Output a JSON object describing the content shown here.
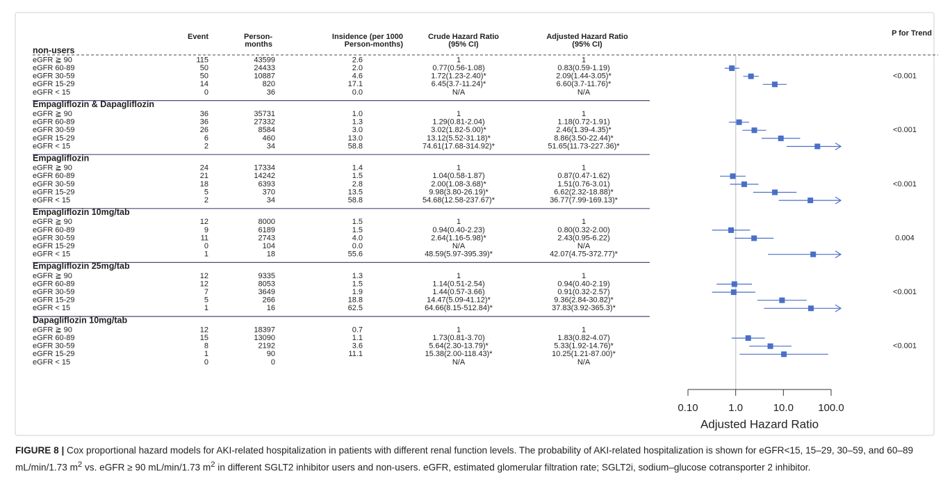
{
  "table": {
    "headers": [
      [
        "Event"
      ],
      [
        "Person-",
        "months"
      ],
      [
        "Insidence (per 1000",
        "Person-months)"
      ],
      [
        "Crude Hazard Ratio",
        "(95% CI)"
      ],
      [
        "Adjusted Hazard Ratio",
        "(95% CI)"
      ],
      [
        "P for Trend"
      ]
    ],
    "groups": [
      {
        "name": "non-users",
        "p_trend": "<0.001",
        "rows": [
          [
            "eGFR ≧ 90",
            115,
            43599,
            "2.6",
            1,
            1
          ],
          [
            "eGFR 60-89",
            50,
            24433,
            "2.0",
            "0.77(0.56-1.08)",
            "0.83(0.59-1.19)"
          ],
          [
            "eGFR 30-59",
            50,
            10887,
            "4.6",
            "1.72(1.23-2.40)*",
            "2.09(1.44-3.05)*"
          ],
          [
            "eGFR 15-29",
            14,
            820,
            "17.1",
            "6.45(3.7-11.24)*",
            "6.60(3.7-11.76)*"
          ],
          [
            "eGFR < 15",
            0,
            36,
            "0.0",
            "N/A",
            "N/A"
          ]
        ]
      },
      {
        "name": "Empagliflozin & Dapagliflozin",
        "p_trend": "<0.001",
        "rows": [
          [
            "eGFR ≧ 90",
            36,
            35731,
            "1.0",
            1,
            1
          ],
          [
            "eGFR 60-89",
            36,
            27332,
            "1.3",
            "1.29(0.81-2.04)",
            "1.18(0.72-1.91)"
          ],
          [
            "eGFR 30-59",
            26,
            8584,
            "3.0",
            "3.02(1.82-5.00)*",
            "2.46(1.39-4.35)*"
          ],
          [
            "eGFR 15-29",
            6,
            460,
            "13.0",
            "13.12(5.52-31.18)*",
            "8.86(3.50-22.44)*"
          ],
          [
            "eGFR < 15",
            2,
            34,
            "58.8",
            "74.61(17.68-314.92)*",
            "51.65(11.73-227.36)*"
          ]
        ]
      },
      {
        "name": "Empagliflozin",
        "p_trend": "<0.001",
        "rows": [
          [
            "eGFR ≧ 90",
            24,
            17334,
            "1.4",
            1,
            1
          ],
          [
            "eGFR 60-89",
            21,
            14242,
            "1.5",
            "1.04(0.58-1.87)",
            "0.87(0.47-1.62)"
          ],
          [
            "eGFR 30-59",
            18,
            6393,
            "2.8",
            "2.00(1.08-3.68)*",
            "1.51(0.76-3.01)"
          ],
          [
            "eGFR 15-29",
            5,
            370,
            "13.5",
            "9.98(3.80-26.19)*",
            "6.62(2.32-18.88)*"
          ],
          [
            "eGFR < 15",
            2,
            34,
            "58.8",
            "54.68(12.58-237.67)*",
            "36.77(7.99-169.13)*"
          ]
        ]
      },
      {
        "name": "Empagliflozin 10mg/tab",
        "p_trend": "0.004",
        "rows": [
          [
            "eGFR ≧ 90",
            12,
            8000,
            "1.5",
            1,
            1
          ],
          [
            "eGFR 60-89",
            9,
            6189,
            "1.5",
            "0.94(0.40-2.23)",
            "0.80(0.32-2.00)"
          ],
          [
            "eGFR 30-59",
            11,
            2743,
            "4.0",
            "2.64(1.16-5.98)*",
            "2.43(0.95-6.22)"
          ],
          [
            "eGFR 15-29",
            0,
            104,
            "0.0",
            "N/A",
            "N/A"
          ],
          [
            "eGFR < 15",
            1,
            18,
            "55.6",
            "48.59(5.97-395.39)*",
            "42.07(4.75-372.77)*"
          ]
        ]
      },
      {
        "name": "Empagliflozin 25mg/tab",
        "p_trend": "<0.001",
        "rows": [
          [
            "eGFR ≧ 90",
            12,
            9335,
            "1.3",
            1,
            1
          ],
          [
            "eGFR 60-89",
            12,
            8053,
            "1.5",
            "1.14(0.51-2.54)",
            "0.94(0.40-2.19)"
          ],
          [
            "eGFR 30-59",
            7,
            3649,
            "1.9",
            "1.44(0.57-3.66)",
            "0.91(0.32-2.57)"
          ],
          [
            "eGFR 15-29",
            5,
            266,
            "18.8",
            "14.47(5.09-41.12)*",
            "9.36(2.84-30.82)*"
          ],
          [
            "eGFR < 15",
            1,
            16,
            "62.5",
            "64.66(8.15-512.84)*",
            "37.83(3.92-365.3)*"
          ]
        ]
      },
      {
        "name": "Dapagliflozin 10mg/tab",
        "p_trend": "<0.001",
        "rows": [
          [
            "eGFR ≧ 90",
            12,
            18397,
            "0.7",
            1,
            1
          ],
          [
            "eGFR 60-89",
            15,
            13090,
            "1.1",
            "1.73(0.81-3.70)",
            "1.83(0.82-4.07)"
          ],
          [
            "eGFR 30-59",
            8,
            2192,
            "3.6",
            "5.64(2.30-13.79)*",
            "5.33(1.92-14.76)*"
          ],
          [
            "eGFR 15-29",
            1,
            90,
            "11.1",
            "15.38(2.00-118.43)*",
            "10.25(1.21-87.00)*"
          ],
          [
            "eGFR < 15",
            0,
            0,
            null,
            "N/A",
            "N/A"
          ]
        ]
      }
    ]
  },
  "chart_data": {
    "type": "forest",
    "xlabel": "Adjusted Hazard Ratio",
    "log": true,
    "color": "#4a6fc7",
    "xlim": [
      0.1,
      100
    ],
    "xticks": [
      {
        "value": 0.1,
        "label": "0.10"
      },
      {
        "value": 1,
        "label": "1.0"
      },
      {
        "value": 10,
        "label": "10.0"
      },
      {
        "value": 100,
        "label": "100.0"
      }
    ],
    "reference": 1,
    "groups": [
      {
        "hr": [
          null,
          0.83,
          2.09,
          6.6,
          null
        ],
        "ci_low": [
          null,
          0.59,
          1.44,
          3.7,
          null
        ],
        "ci_high": [
          null,
          1.19,
          3.05,
          11.76,
          null
        ]
      },
      {
        "hr": [
          null,
          1.18,
          2.46,
          8.86,
          51.65
        ],
        "ci_low": [
          null,
          0.72,
          1.39,
          3.5,
          11.73
        ],
        "ci_high": [
          null,
          1.91,
          4.35,
          22.44,
          227.36
        ]
      },
      {
        "hr": [
          null,
          0.87,
          1.51,
          6.62,
          36.77
        ],
        "ci_low": [
          null,
          0.47,
          0.76,
          2.32,
          7.99
        ],
        "ci_high": [
          null,
          1.62,
          3.01,
          18.88,
          169.13
        ]
      },
      {
        "hr": [
          null,
          0.8,
          2.43,
          null,
          42.07
        ],
        "ci_low": [
          null,
          0.32,
          0.95,
          null,
          4.75
        ],
        "ci_high": [
          null,
          2.0,
          6.22,
          null,
          372.77
        ]
      },
      {
        "hr": [
          null,
          0.94,
          0.91,
          9.36,
          37.83
        ],
        "ci_low": [
          null,
          0.4,
          0.32,
          2.84,
          3.92
        ],
        "ci_high": [
          null,
          2.19,
          2.57,
          30.82,
          365.3
        ]
      },
      {
        "hr": [
          null,
          1.83,
          5.33,
          10.25,
          null
        ],
        "ci_low": [
          null,
          0.82,
          1.92,
          1.21,
          null
        ],
        "ci_high": [
          null,
          4.07,
          14.76,
          87.0,
          null
        ]
      }
    ]
  },
  "caption": [
    "FIGURE 8 |",
    " Cox proportional hazard models for AKI-related hospitalization in patients with different renal function levels. The probability of AKI-related hospitalization is shown for eGFR<15, 15–29, 30–59, and 60–89 mL/min/1.73 m",
    "2",
    " vs. eGFR ≥ 90 mL/min/1.73 m",
    "2",
    " in different SGLT2 inhibitor users and non-users. eGFR, estimated glomerular filtration rate; SGLT2i, sodium–glucose cotransporter 2 inhibitor."
  ]
}
